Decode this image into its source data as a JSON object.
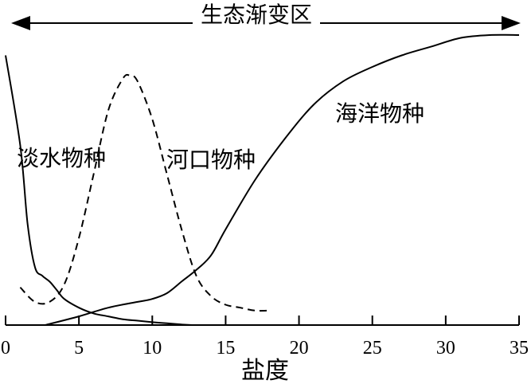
{
  "chart_data": {
    "type": "line",
    "title": "生态渐变区",
    "xlabel": "盐度",
    "ylabel": "",
    "xlim": [
      0,
      35
    ],
    "x_ticks": [
      0,
      5,
      10,
      15,
      20,
      25,
      30,
      35
    ],
    "grid": false,
    "series": [
      {
        "name": "淡水物种",
        "line_style": "solid",
        "x": [
          0,
          1,
          1.5,
          2,
          2.5,
          3,
          3.5,
          4,
          5,
          6,
          7,
          8,
          9,
          10,
          11,
          12,
          12.7
        ],
        "y": [
          0.93,
          0.62,
          0.35,
          0.2,
          0.17,
          0.15,
          0.12,
          0.09,
          0.06,
          0.04,
          0.03,
          0.02,
          0.015,
          0.01,
          0.006,
          0.002,
          0
        ]
      },
      {
        "name": "河口物种",
        "line_style": "dashed",
        "x": [
          1,
          2,
          3,
          4,
          5,
          6,
          7,
          8,
          8.5,
          9,
          10,
          11,
          12,
          13,
          14,
          15,
          16,
          17,
          18
        ],
        "y": [
          0.13,
          0.08,
          0.08,
          0.14,
          0.3,
          0.52,
          0.74,
          0.85,
          0.86,
          0.84,
          0.71,
          0.52,
          0.33,
          0.17,
          0.1,
          0.07,
          0.06,
          0.05,
          0.05
        ]
      },
      {
        "name": "海洋物种",
        "line_style": "solid",
        "x": [
          2.7,
          5,
          7,
          9,
          10,
          11,
          12,
          13,
          14,
          15,
          17,
          19,
          21,
          23,
          25,
          27,
          29,
          31,
          33,
          35
        ],
        "y": [
          0,
          0.03,
          0.06,
          0.08,
          0.09,
          0.11,
          0.15,
          0.19,
          0.24,
          0.33,
          0.5,
          0.64,
          0.76,
          0.84,
          0.89,
          0.93,
          0.96,
          0.99,
          1.0,
          1.0
        ]
      }
    ]
  }
}
